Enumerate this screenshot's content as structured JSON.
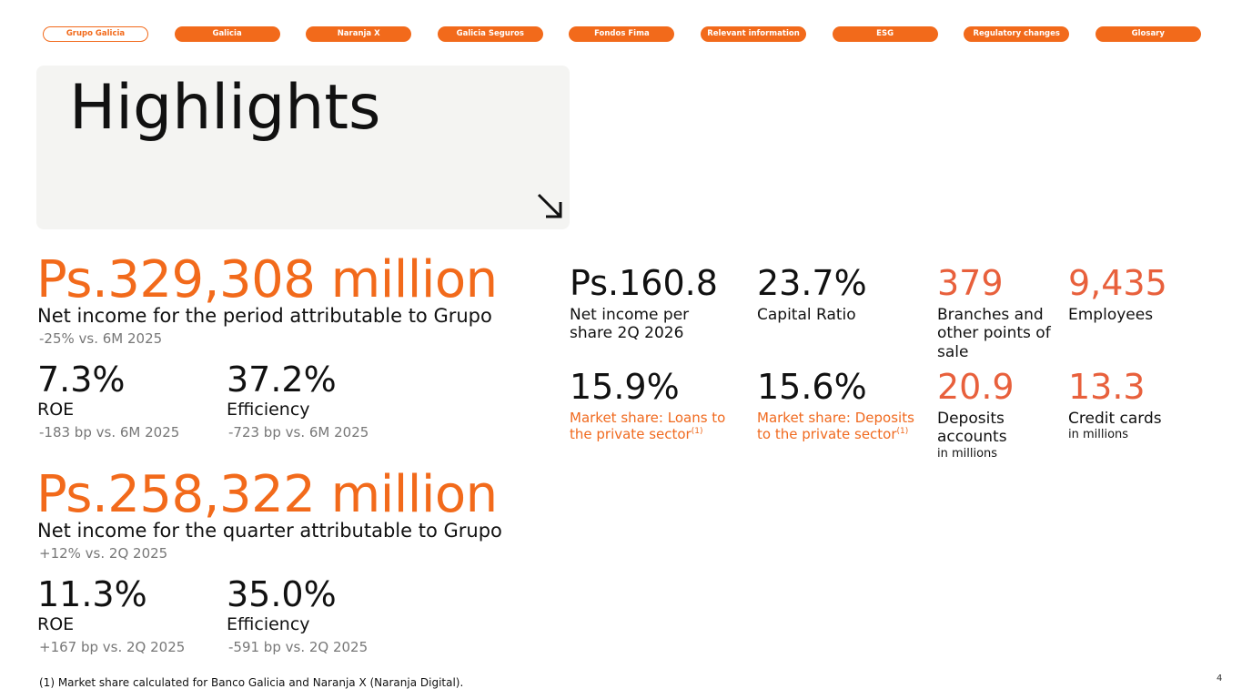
{
  "nav": [
    "Grupo Galicia",
    "Galicia",
    "Naranja X",
    "Galicia Seguros",
    "Fondos Fima",
    "Relevant information",
    "ESG",
    "Regulatory changes",
    "Glosary"
  ],
  "header": {
    "title": "Highlights"
  },
  "period": {
    "value": "Ps.329,308 million",
    "label": "Net income for the period attributable to Grupo",
    "change": "-25% vs. 6M 2025",
    "metrics": [
      {
        "value": "7.3%",
        "label": "ROE",
        "change": "-183 bp vs. 6M 2025"
      },
      {
        "value": "37.2%",
        "label": "Efficiency",
        "change": "-723 bp vs. 6M 2025"
      }
    ]
  },
  "quarter": {
    "value": "Ps.258,322 million",
    "label": "Net income for the quarter attributable to Grupo",
    "change": "+12% vs. 2Q 2025",
    "metrics": [
      {
        "value": "11.3%",
        "label": "ROE",
        "change": "+167 bp vs. 2Q 2025"
      },
      {
        "value": "35.0%",
        "label": "Efficiency",
        "change": "-591 bp vs. 2Q 2025"
      }
    ]
  },
  "stats": [
    {
      "value": "Ps.160.8",
      "label": "Net income per share 2Q 2026"
    },
    {
      "value": "23.7%",
      "label": "Capital Ratio"
    },
    {
      "value": "379",
      "label": "Branches and other points of sale"
    },
    {
      "value": "9,435",
      "label": "Employees"
    },
    {
      "value": "15.9%",
      "label": "Market share: Loans to the private sector",
      "note": "(1)"
    },
    {
      "value": "15.6%",
      "label": "Market share: Deposits to the private sector",
      "note": "(1)"
    },
    {
      "value": "20.9",
      "label": "Deposits accounts",
      "unit": "in millions"
    },
    {
      "value": "13.3",
      "label": "Credit cards",
      "unit": "in millions"
    }
  ],
  "footnote": "(1) Market share calculated for Banco Galicia and Naranja X (Naranja Digital).",
  "page_number": "4"
}
